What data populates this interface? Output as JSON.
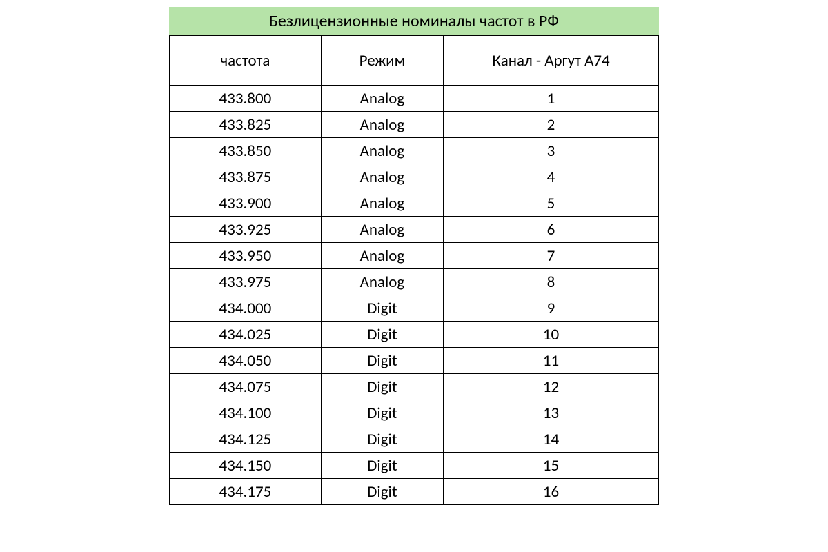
{
  "title": "Безлицензионные номиналы частот в РФ",
  "title_background": "#b6e3a8",
  "border_color": "#000000",
  "text_color": "#000000",
  "background_color": "#ffffff",
  "title_fontsize": 24,
  "cell_fontsize": 23,
  "columns": [
    {
      "label": "частота",
      "width_pct": 31,
      "align": "center"
    },
    {
      "label": "Режим",
      "width_pct": 25,
      "align": "center"
    },
    {
      "label": "Канал - Аргут А74",
      "width_pct": 44,
      "align": "center"
    }
  ],
  "rows": [
    [
      "433.800",
      "Analog",
      "1"
    ],
    [
      "433.825",
      "Analog",
      "2"
    ],
    [
      "433.850",
      "Analog",
      "3"
    ],
    [
      "433.875",
      "Analog",
      "4"
    ],
    [
      "433.900",
      "Analog",
      "5"
    ],
    [
      "433.925",
      "Analog",
      "6"
    ],
    [
      "433.950",
      "Analog",
      "7"
    ],
    [
      "433.975",
      "Analog",
      "8"
    ],
    [
      "434.000",
      "Digit",
      "9"
    ],
    [
      "434.025",
      "Digit",
      "10"
    ],
    [
      "434.050",
      "Digit",
      "11"
    ],
    [
      "434.075",
      "Digit",
      "12"
    ],
    [
      "434.100",
      "Digit",
      "13"
    ],
    [
      "434.125",
      "Digit",
      "14"
    ],
    [
      "434.150",
      "Digit",
      "15"
    ],
    [
      "434.175",
      "Digit",
      "16"
    ]
  ]
}
